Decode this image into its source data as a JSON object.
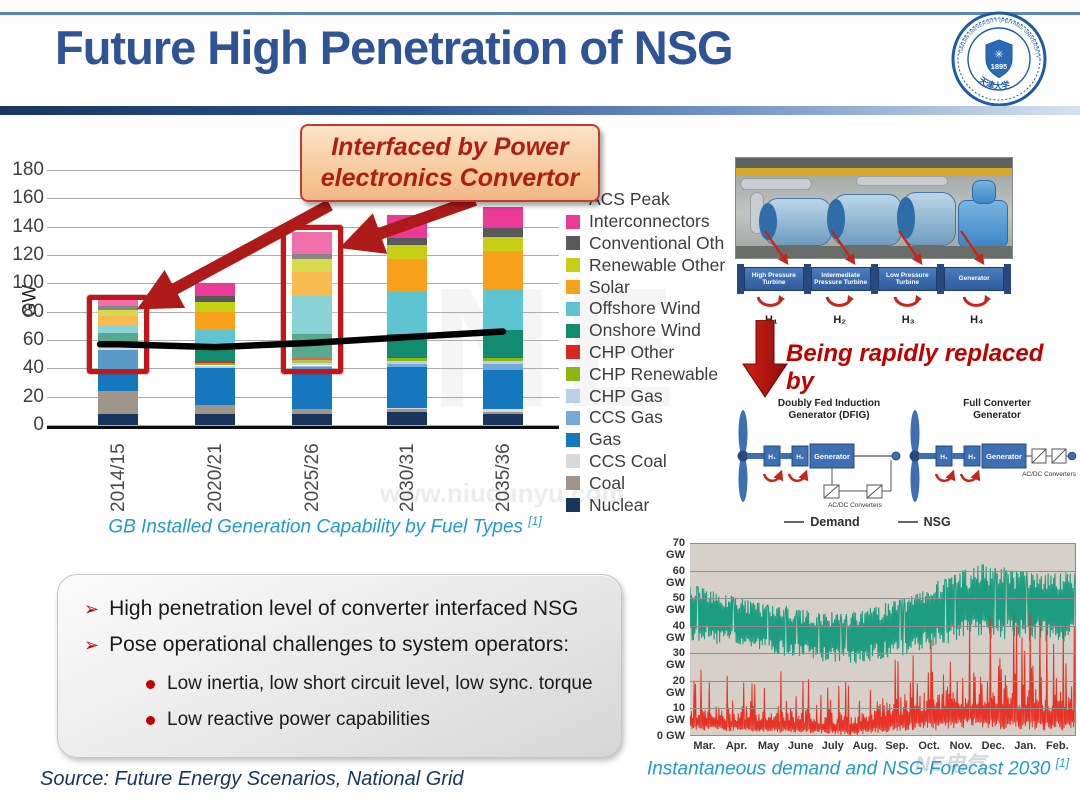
{
  "slide": {
    "title": "Future High Penetration of NSG",
    "source_note": "Source: Future Energy Scenarios, National Grid",
    "logo": {
      "ring_text": "TIANJIN UNIVERSITY (PEIYANG UNIVERSITY)",
      "year": "1895",
      "cn_name": "天津大学"
    },
    "watermark": {
      "big": "NE",
      "url": "www.niudunyu.com",
      "brand": "NE电气"
    }
  },
  "callout": {
    "text": "Interfaced by Power electronics Convertor"
  },
  "replaced_note": "Being rapidly replaced by",
  "turbine_diagram": {
    "segments": [
      "High Pressure Turbine",
      "Intermediate Pressure Turbine",
      "Low Pressure Turbine",
      "Generator"
    ],
    "inertia": [
      "H₁",
      "H₂",
      "H₃",
      "H₄"
    ]
  },
  "dfig": {
    "title_line1": "Doubly Fed Induction",
    "title_line2": "Generator (DFIG)",
    "h1": "H₁",
    "h2": "H₂",
    "generator": "Generator",
    "converter_label": "AC/DC Converters"
  },
  "fullconv": {
    "title_line1": "Full Converter",
    "title_line2": "Generator",
    "h1": "H₁",
    "h2": "H₂",
    "generator": "Generator",
    "converter_label": "AC/DC Converters"
  },
  "bullets": {
    "items": [
      {
        "text": "High penetration level of converter interfaced NSG"
      },
      {
        "text": "Pose operational challenges to system operators:"
      }
    ],
    "subitems": [
      "Low inertia, low short circuit level, low sync. torque",
      "Low reactive power capabilities"
    ]
  },
  "chart_data": [
    {
      "type": "bar",
      "stacked": true,
      "title": "GB Installed Generation Capability by Fuel Types",
      "title_ref": "[1]",
      "ylabel": "GW",
      "ylim": [
        0,
        180
      ],
      "ytick_step": 20,
      "grid": true,
      "legend_position": "right",
      "categories": [
        "2014/15",
        "2020/21",
        "2025/26",
        "2030/31",
        "2035/36"
      ],
      "series": [
        {
          "name": "Nuclear",
          "color": "#17365d",
          "values": [
            8,
            8,
            8,
            9,
            8
          ]
        },
        {
          "name": "Coal",
          "color": "#a09588",
          "values": [
            16,
            6,
            3,
            2,
            1
          ]
        },
        {
          "name": "CCS Coal",
          "color": "#d9d9d9",
          "values": [
            0,
            0,
            0,
            1,
            2
          ]
        },
        {
          "name": "Gas",
          "color": "#1577be",
          "values": [
            29,
            26,
            30,
            29,
            28
          ]
        },
        {
          "name": "CCS Gas",
          "color": "#74a9db",
          "values": [
            0,
            0,
            1,
            2,
            4
          ]
        },
        {
          "name": "CHP Gas",
          "color": "#bacfe8",
          "values": [
            2,
            2,
            2,
            2,
            2
          ]
        },
        {
          "name": "CHP Renewable",
          "color": "#8db611",
          "values": [
            1,
            2,
            2,
            2,
            2
          ]
        },
        {
          "name": "CHP Other",
          "color": "#d62a21",
          "values": [
            1,
            1,
            1,
            1,
            1
          ]
        },
        {
          "name": "Onshore Wind",
          "color": "#128c70",
          "values": [
            8,
            12,
            17,
            16,
            19
          ]
        },
        {
          "name": "Offshore Wind",
          "color": "#5ec4d2",
          "values": [
            5,
            10,
            27,
            30,
            29
          ]
        },
        {
          "name": "Solar",
          "color": "#f7a11a",
          "values": [
            7,
            13,
            17,
            23,
            27
          ]
        },
        {
          "name": "Renewable Other",
          "color": "#c5cf14",
          "values": [
            4,
            7,
            9,
            10,
            10
          ]
        },
        {
          "name": "Conventional Oth",
          "color": "#58595b",
          "values": [
            3,
            4,
            4,
            5,
            6
          ]
        },
        {
          "name": "Interconnectors",
          "color": "#ec3b96",
          "values": [
            4,
            9,
            15,
            16,
            15
          ]
        }
      ],
      "line_series": {
        "name": "ACS Peak",
        "color": "#000000",
        "values": [
          57,
          55,
          58,
          62,
          66
        ]
      },
      "highlights": [
        {
          "category_index": 0,
          "gw_from": 43,
          "gw_to": 92
        },
        {
          "category_index": 2,
          "gw_from": 43,
          "gw_to": 141
        }
      ]
    },
    {
      "type": "line",
      "title": "Instantaneous demand and NSG Forecast 2030",
      "title_ref": "[1]",
      "ylim": [
        0,
        70
      ],
      "ytick_step": 10,
      "ytick_suffix": " GW",
      "grid": true,
      "plot_bg": "#d6d0c8",
      "legend_position": "top",
      "x_months": [
        "Mar.",
        "Apr.",
        "May",
        "June",
        "July",
        "Aug.",
        "Sep.",
        "Oct.",
        "Nov.",
        "Dec.",
        "Jan.",
        "Feb."
      ],
      "series": [
        {
          "name": "Demand",
          "color": "#1c9c80",
          "band_low": [
            34,
            33,
            31,
            29,
            27,
            26,
            28,
            30,
            33,
            35,
            35,
            34
          ],
          "band_high": [
            56,
            52,
            49,
            47,
            45,
            45,
            48,
            52,
            58,
            63,
            61,
            60
          ]
        },
        {
          "name": "NSG",
          "color": "#e63326",
          "band_low": [
            2,
            2,
            1,
            1,
            1,
            0,
            1,
            2,
            2,
            3,
            2,
            2
          ],
          "band_high": [
            26,
            22,
            22,
            24,
            20,
            22,
            30,
            40,
            45,
            48,
            50,
            42
          ]
        }
      ]
    }
  ]
}
